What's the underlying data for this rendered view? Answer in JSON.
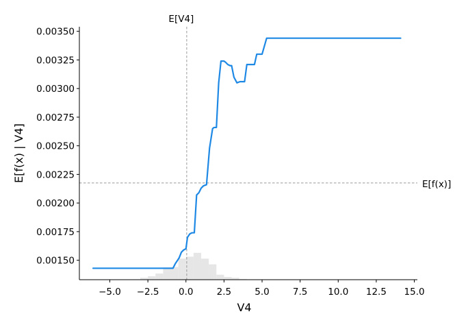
{
  "chart_data": {
    "type": "line",
    "xlabel": "V4",
    "ylabel": "E[f(x) | V4]",
    "xlim": [
      -7.0,
      15.2
    ],
    "ylim": [
      0.00133,
      0.00354
    ],
    "x_ticks": [
      -5.0,
      -2.5,
      0.0,
      2.5,
      5.0,
      7.5,
      10.0,
      12.5,
      15.0
    ],
    "x_tick_labels": [
      "−5.0",
      "−2.5",
      "0.0",
      "2.5",
      "5.0",
      "7.5",
      "10.0",
      "12.5",
      "15.0"
    ],
    "y_ticks": [
      0.0015,
      0.00175,
      0.002,
      0.00225,
      0.0025,
      0.00275,
      0.003,
      0.00325,
      0.0035
    ],
    "y_tick_labels": [
      "0.00150",
      "0.00175",
      "0.00200",
      "0.00225",
      "0.00250",
      "0.00275",
      "0.00300",
      "0.00325",
      "0.00350"
    ],
    "grid": false,
    "reference_lines": {
      "vertical": {
        "label": "E[V4]",
        "x": 0.05
      },
      "horizontal": {
        "label": "E[f(x)]",
        "y": 0.002175
      }
    },
    "series": [
      {
        "color": "#1e88e5",
        "x": [
          -6.1,
          -0.85,
          -0.7,
          -0.55,
          -0.45,
          -0.3,
          -0.15,
          0.0,
          0.1,
          0.25,
          0.4,
          0.55,
          0.7,
          0.85,
          1.0,
          1.15,
          1.35,
          1.55,
          1.75,
          1.85,
          2.0,
          2.15,
          2.3,
          2.5,
          2.6,
          2.75,
          2.9,
          3.0,
          3.15,
          3.35,
          3.55,
          3.85,
          4.0,
          4.15,
          4.3,
          4.5,
          4.65,
          4.85,
          5.0,
          5.3,
          5.5,
          5.7,
          5.9,
          6.05,
          6.15,
          14.1
        ],
        "y": [
          0.00143,
          0.00143,
          0.00147,
          0.0015,
          0.00152,
          0.00157,
          0.00159,
          0.0016,
          0.0017,
          0.00173,
          0.00174,
          0.00174,
          0.00207,
          0.00209,
          0.00213,
          0.00215,
          0.00216,
          0.00248,
          0.00265,
          0.00266,
          0.00266,
          0.00305,
          0.00324,
          0.00324,
          0.00323,
          0.00321,
          0.0032,
          0.0032,
          0.0031,
          0.00305,
          0.00306,
          0.00306,
          0.00321,
          0.00321,
          0.00321,
          0.00321,
          0.0033,
          0.0033,
          0.0033,
          0.00344,
          0.00344,
          0.00344,
          0.00344,
          0.00344,
          0.00344,
          0.00344
        ]
      }
    ],
    "histogram": {
      "color": "#e6e6e6",
      "bin_edges": [
        -3.5,
        -3.0,
        -2.5,
        -2.0,
        -1.5,
        -1.0,
        -0.5,
        0.0,
        0.5,
        1.0,
        1.5,
        2.0,
        2.5,
        3.0,
        3.5,
        4.0,
        4.5,
        5.0,
        5.5
      ],
      "relative_heights": [
        0.01,
        0.05,
        0.09,
        0.16,
        0.32,
        0.33,
        0.55,
        0.6,
        0.7,
        0.55,
        0.4,
        0.13,
        0.07,
        0.05,
        0.02,
        0.01,
        0.01,
        0.005
      ]
    }
  }
}
